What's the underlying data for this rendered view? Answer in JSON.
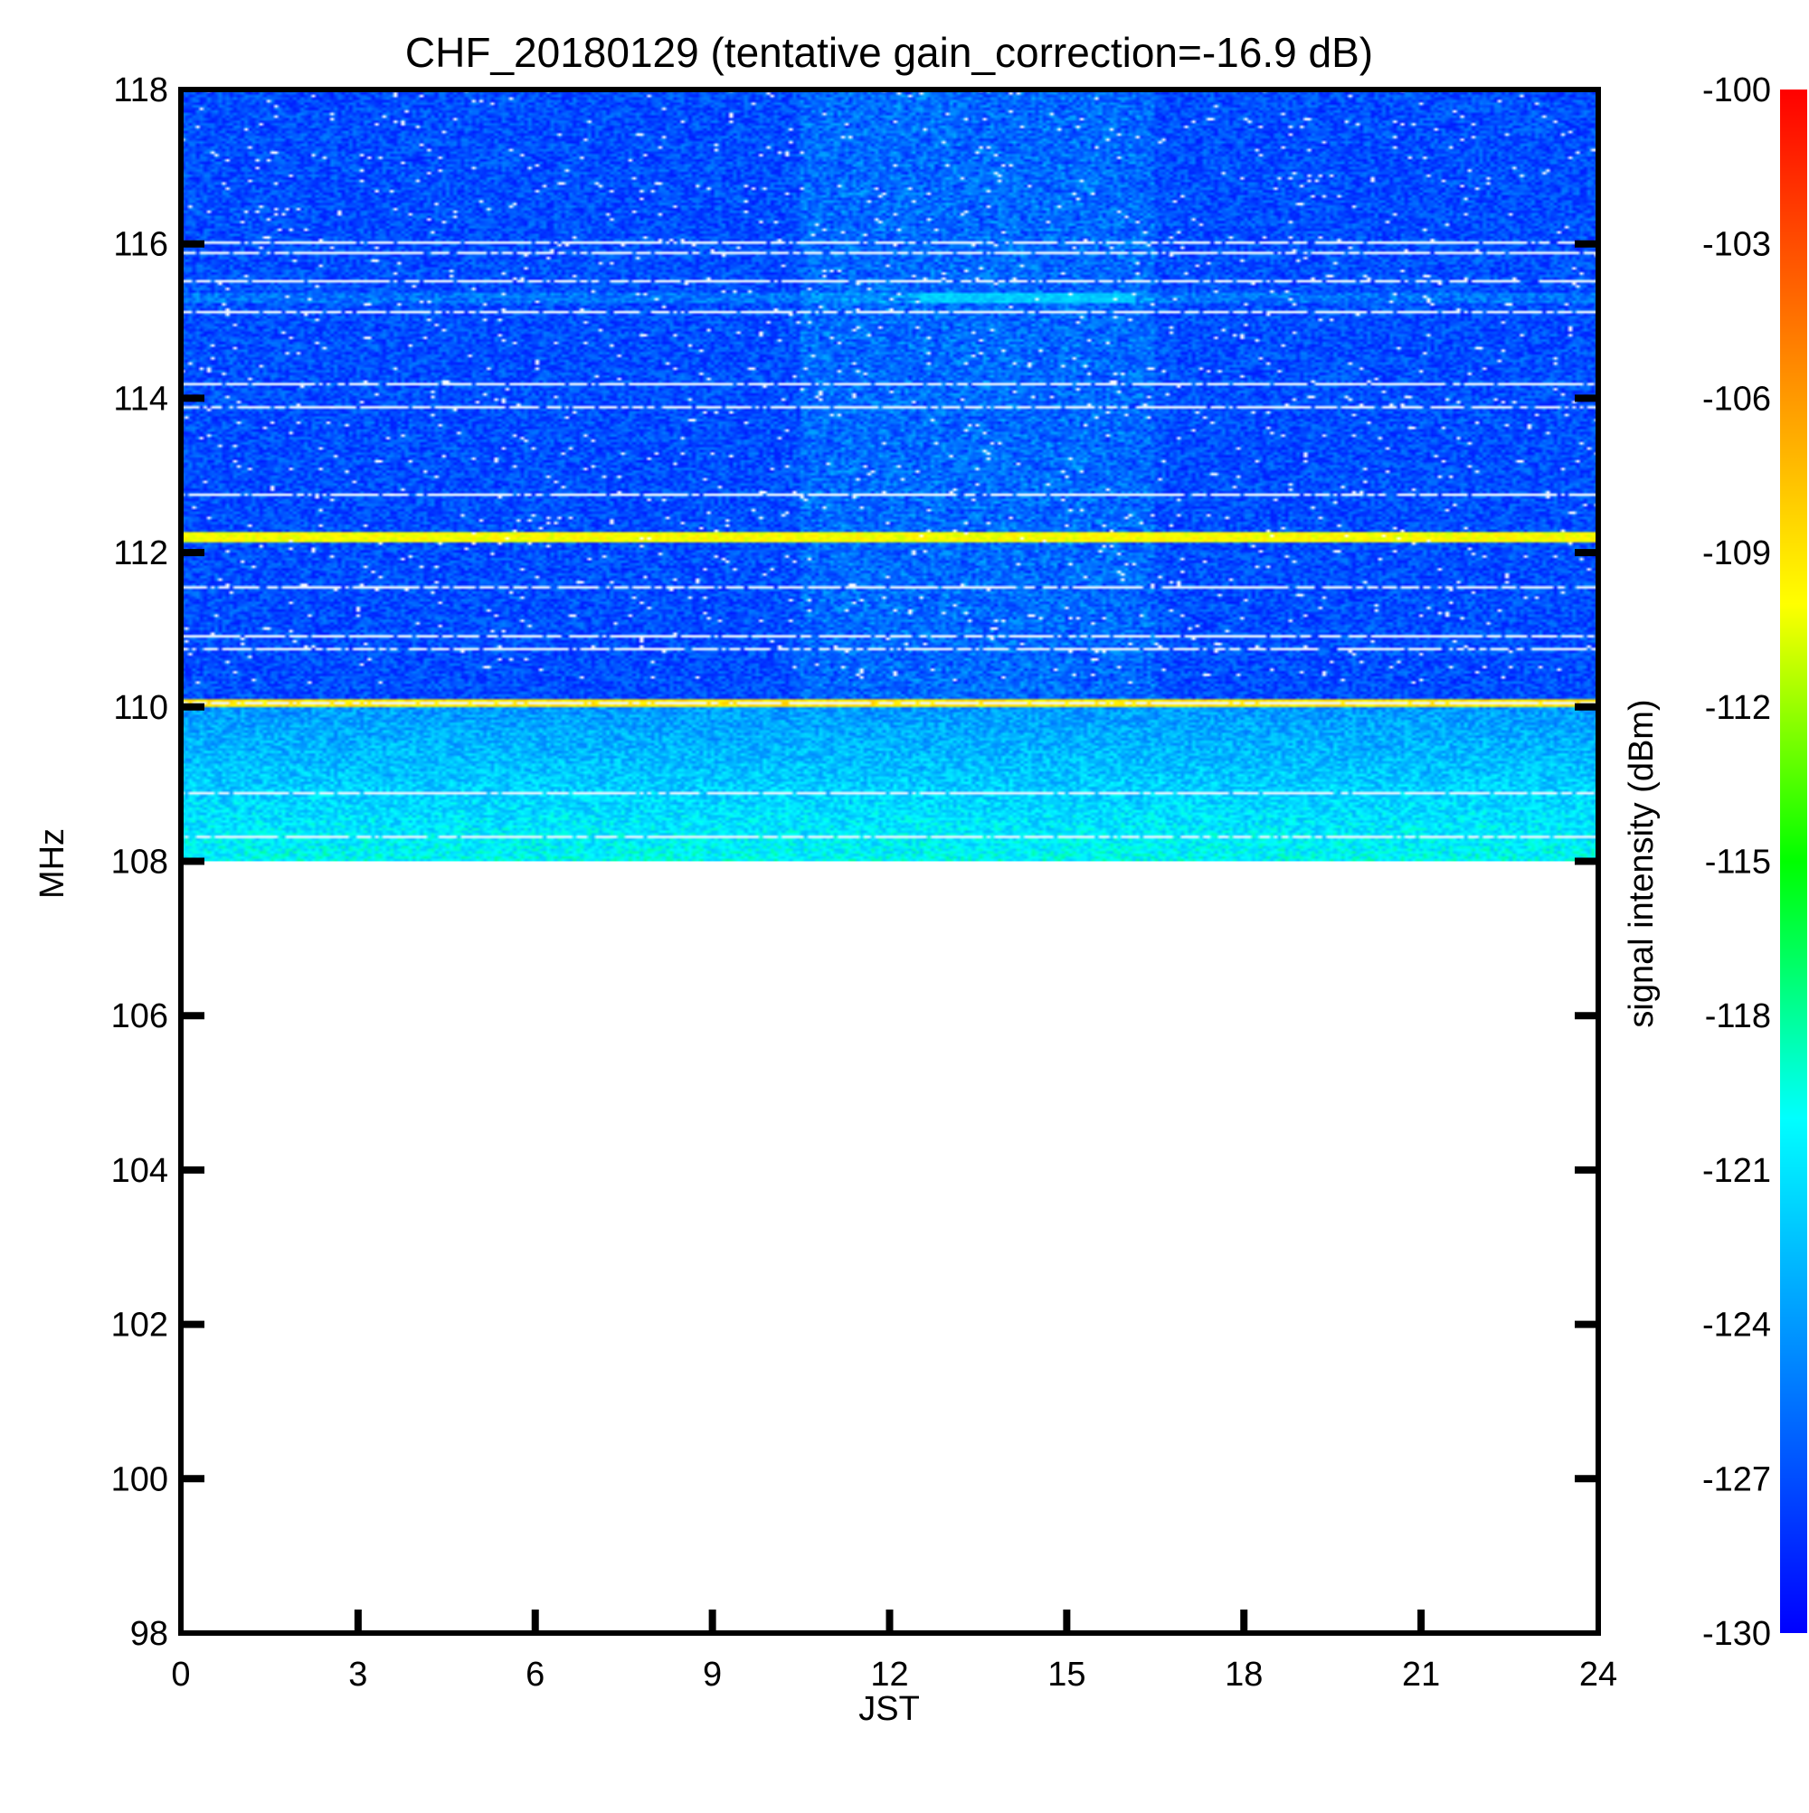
{
  "chart_data": {
    "type": "heatmap",
    "title": "CHF_20180129 (tentative gain_correction=-16.9 dB)",
    "xlabel": "JST",
    "ylabel": "MHz",
    "xlim": [
      0,
      24
    ],
    "ylim": [
      98,
      118
    ],
    "x_ticks": [
      "0",
      "3",
      "6",
      "9",
      "12",
      "15",
      "18",
      "21",
      "24"
    ],
    "y_ticks": [
      "98",
      "100",
      "102",
      "104",
      "106",
      "108",
      "110",
      "112",
      "114",
      "116",
      "118"
    ],
    "data_extent": {
      "x": [
        0,
        24
      ],
      "y": [
        108,
        118
      ]
    },
    "colorbar": {
      "label": "signal intensity (dBm)",
      "range": [
        -130,
        -100
      ],
      "ticks": [
        "-100",
        "-103",
        "-106",
        "-109",
        "-112",
        "-115",
        "-118",
        "-121",
        "-124",
        "-127",
        "-130"
      ],
      "colors": [
        "#0000ff",
        "#0080ff",
        "#00ffff",
        "#00ff00",
        "#ffff00",
        "#ff8000",
        "#ff0000"
      ]
    },
    "features": [
      {
        "kind": "strong-line",
        "frequency_mhz": 112.2,
        "level_dbm": -110
      },
      {
        "kind": "strong-line",
        "frequency_mhz": 110.05,
        "level_dbm": -109
      },
      {
        "kind": "weak-line",
        "frequency_mhz": 115.3,
        "level_dbm": -122
      },
      {
        "kind": "background",
        "band_mhz": [
          110,
          118
        ],
        "level_dbm": -127
      },
      {
        "kind": "background",
        "band_mhz": [
          108,
          110
        ],
        "level_dbm": -121
      }
    ]
  }
}
